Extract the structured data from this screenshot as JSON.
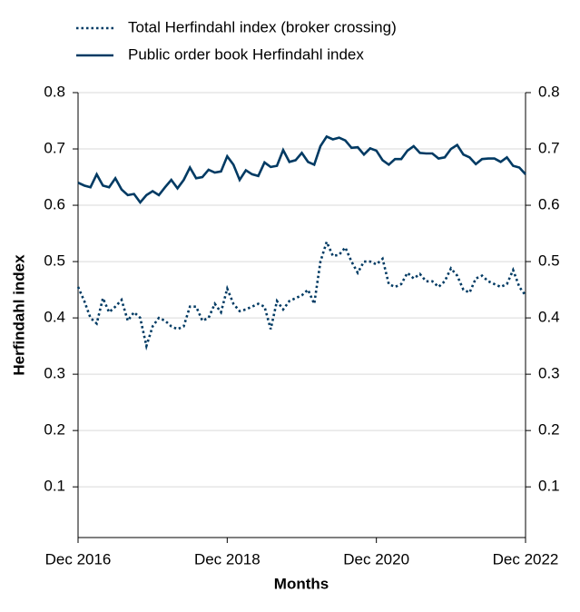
{
  "chart_data": {
    "type": "line",
    "x_label": "Months",
    "y_label": "Herfindahl index",
    "x": [
      "2016-12",
      "2017-01",
      "2017-02",
      "2017-03",
      "2017-04",
      "2017-05",
      "2017-06",
      "2017-07",
      "2017-08",
      "2017-09",
      "2017-10",
      "2017-11",
      "2017-12",
      "2018-01",
      "2018-02",
      "2018-03",
      "2018-04",
      "2018-05",
      "2018-06",
      "2018-07",
      "2018-08",
      "2018-09",
      "2018-10",
      "2018-11",
      "2018-12",
      "2019-01",
      "2019-02",
      "2019-03",
      "2019-04",
      "2019-05",
      "2019-06",
      "2019-07",
      "2019-08",
      "2019-09",
      "2019-10",
      "2019-11",
      "2019-12",
      "2020-01",
      "2020-02",
      "2020-03",
      "2020-04",
      "2020-05",
      "2020-06",
      "2020-07",
      "2020-08",
      "2020-09",
      "2020-10",
      "2020-11",
      "2020-12",
      "2021-01",
      "2021-02",
      "2021-03",
      "2021-04",
      "2021-05",
      "2021-06",
      "2021-07",
      "2021-08",
      "2021-09",
      "2021-10",
      "2021-11",
      "2021-12",
      "2022-01",
      "2022-02",
      "2022-03",
      "2022-04",
      "2022-05",
      "2022-06",
      "2022-07",
      "2022-08",
      "2022-09",
      "2022-10",
      "2022-11",
      "2022-12"
    ],
    "series": [
      {
        "name": "Total Herfindahl index (broker crossing)",
        "color": "#003a63",
        "dash": "dotted",
        "values": [
          0.455,
          0.43,
          0.4,
          0.39,
          0.435,
          0.41,
          0.42,
          0.432,
          0.395,
          0.41,
          0.4,
          0.35,
          0.385,
          0.4,
          0.395,
          0.385,
          0.38,
          0.385,
          0.42,
          0.42,
          0.395,
          0.4,
          0.425,
          0.41,
          0.452,
          0.425,
          0.412,
          0.415,
          0.42,
          0.425,
          0.42,
          0.38,
          0.43,
          0.415,
          0.43,
          0.435,
          0.44,
          0.45,
          0.425,
          0.5,
          0.535,
          0.51,
          0.512,
          0.525,
          0.5,
          0.48,
          0.5,
          0.5,
          0.495,
          0.505,
          0.46,
          0.455,
          0.46,
          0.48,
          0.47,
          0.478,
          0.465,
          0.465,
          0.455,
          0.465,
          0.488,
          0.475,
          0.45,
          0.445,
          0.47,
          0.475,
          0.465,
          0.46,
          0.455,
          0.46,
          0.485,
          0.455,
          0.44
        ]
      },
      {
        "name": "Public order book Herfindahl index",
        "color": "#003a63",
        "dash": "solid",
        "values": [
          0.64,
          0.635,
          0.632,
          0.655,
          0.635,
          0.632,
          0.648,
          0.628,
          0.618,
          0.62,
          0.605,
          0.618,
          0.625,
          0.618,
          0.632,
          0.645,
          0.63,
          0.645,
          0.667,
          0.648,
          0.65,
          0.663,
          0.658,
          0.66,
          0.687,
          0.672,
          0.645,
          0.662,
          0.655,
          0.652,
          0.676,
          0.668,
          0.67,
          0.698,
          0.677,
          0.68,
          0.693,
          0.677,
          0.672,
          0.705,
          0.722,
          0.717,
          0.72,
          0.715,
          0.702,
          0.703,
          0.69,
          0.701,
          0.697,
          0.68,
          0.672,
          0.682,
          0.682,
          0.697,
          0.705,
          0.693,
          0.692,
          0.692,
          0.683,
          0.685,
          0.7,
          0.707,
          0.69,
          0.685,
          0.673,
          0.682,
          0.683,
          0.683,
          0.677,
          0.685,
          0.67,
          0.667,
          0.655
        ]
      }
    ],
    "xlim": [
      "2016-12",
      "2022-12"
    ],
    "xticks": [
      {
        "value": "2016-12",
        "label": "Dec 2016"
      },
      {
        "value": "2018-12",
        "label": "Dec 2018"
      },
      {
        "value": "2020-12",
        "label": "Dec 2020"
      },
      {
        "value": "2022-12",
        "label": "Dec 2022"
      }
    ],
    "ylim": [
      0.01,
      0.8
    ],
    "yticks": [
      0.1,
      0.2,
      0.3,
      0.4,
      0.5,
      0.6,
      0.7,
      0.8
    ],
    "y2lim": [
      0.01,
      0.8
    ],
    "y2ticks": [
      0.1,
      0.2,
      0.3,
      0.4,
      0.5,
      0.6,
      0.7,
      0.8
    ],
    "grid": true,
    "legend": "top-left"
  }
}
